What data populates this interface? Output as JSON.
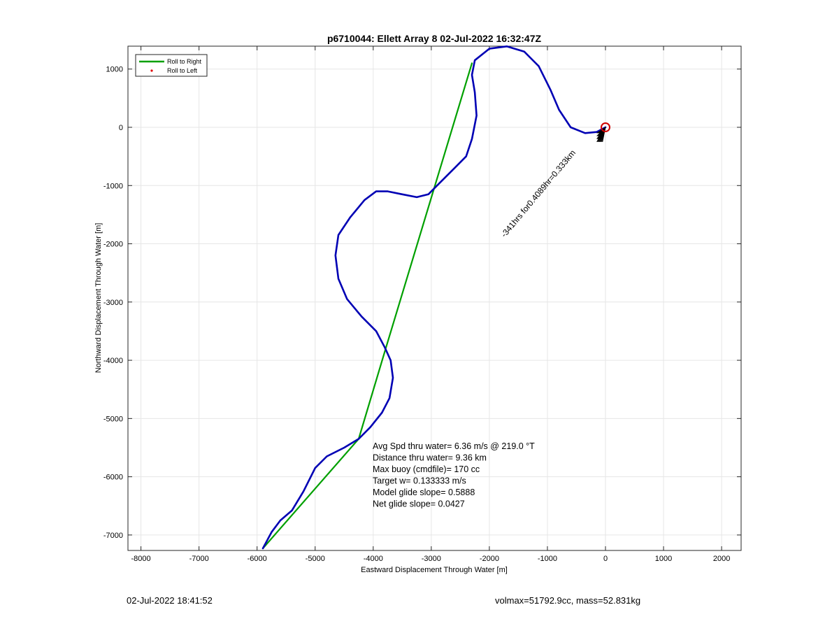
{
  "chart_data": {
    "type": "line",
    "title": "p6710044: Ellett Array 8 02-Jul-2022 16:32:47Z",
    "xlabel": "Eastward Displacement Through Water [m]",
    "ylabel": "Northward Displacement Through Water [m]",
    "xlim": [
      -8200,
      2300
    ],
    "ylim": [
      -7250,
      1400
    ],
    "xticks": [
      -8000,
      -7000,
      -6000,
      -5000,
      -4000,
      -3000,
      -2000,
      -1000,
      0,
      1000,
      2000
    ],
    "yticks": [
      -7000,
      -6000,
      -5000,
      -4000,
      -3000,
      -2000,
      -1000,
      0,
      1000
    ],
    "grid": true,
    "legend_position": "top-left",
    "legend": [
      {
        "label": "Roll to Right",
        "color": "#00a000",
        "marker": "line"
      },
      {
        "label": "Roll to Left",
        "color": "#e00000",
        "marker": "dot"
      }
    ],
    "series": [
      {
        "name": "Roll to Right",
        "color": "#00a000",
        "points": [
          [
            -5900,
            -7230
          ],
          [
            -4250,
            -5350
          ],
          [
            -3780,
            -3780
          ],
          [
            -2300,
            1100
          ]
        ]
      },
      {
        "color": "#0000b4",
        "points": [
          [
            -5900,
            -7230
          ],
          [
            -5750,
            -6950
          ],
          [
            -5600,
            -6750
          ],
          [
            -5400,
            -6580
          ],
          [
            -5200,
            -6250
          ],
          [
            -5000,
            -5850
          ],
          [
            -4800,
            -5650
          ],
          [
            -4500,
            -5500
          ],
          [
            -4250,
            -5350
          ],
          [
            -4050,
            -5150
          ],
          [
            -3850,
            -4900
          ],
          [
            -3720,
            -4650
          ],
          [
            -3660,
            -4300
          ],
          [
            -3700,
            -4000
          ],
          [
            -3800,
            -3780
          ],
          [
            -3950,
            -3500
          ],
          [
            -4200,
            -3250
          ],
          [
            -4450,
            -2950
          ],
          [
            -4600,
            -2600
          ],
          [
            -4650,
            -2200
          ],
          [
            -4600,
            -1850
          ],
          [
            -4400,
            -1550
          ],
          [
            -4150,
            -1250
          ],
          [
            -3950,
            -1100
          ],
          [
            -3750,
            -1100
          ],
          [
            -3500,
            -1150
          ],
          [
            -3250,
            -1200
          ],
          [
            -3050,
            -1150
          ],
          [
            -2850,
            -950
          ],
          [
            -2600,
            -700
          ],
          [
            -2400,
            -500
          ],
          [
            -2300,
            -200
          ],
          [
            -2220,
            200
          ],
          [
            -2250,
            600
          ],
          [
            -2300,
            900
          ],
          [
            -2250,
            1150
          ],
          [
            -2000,
            1350
          ],
          [
            -1700,
            1390
          ],
          [
            -1400,
            1300
          ],
          [
            -1150,
            1050
          ],
          [
            -950,
            650
          ],
          [
            -800,
            300
          ],
          [
            -600,
            0
          ],
          [
            -350,
            -100
          ],
          [
            -150,
            -80
          ],
          [
            0,
            0
          ]
        ]
      }
    ],
    "start_marker": {
      "x": 0,
      "y": 0,
      "color": "#d00000"
    },
    "wedge_x": [
      -150,
      -140,
      -130,
      -120,
      -110,
      -100,
      -90,
      -80,
      -70,
      -60,
      -50
    ],
    "wedge_y": [
      -250,
      -200,
      -150,
      -100,
      -50,
      0,
      50
    ],
    "annotation_rotated": "-341hrs for0.4089hr=0.333km",
    "stats": [
      "Avg Spd thru water=  6.36 m/s @ 219.0 °T",
      "Distance thru water=  9.36 km",
      "Max buoy (cmdfile)= 170 cc",
      "Target w= 0.133333 m/s",
      "Model glide slope= 0.5888",
      "Net glide slope= 0.0427"
    ]
  },
  "footer": {
    "timestamp": "02-Jul-2022 18:41:52",
    "volmax_mass": "volmax=51792.9cc, mass=52.831kg"
  }
}
